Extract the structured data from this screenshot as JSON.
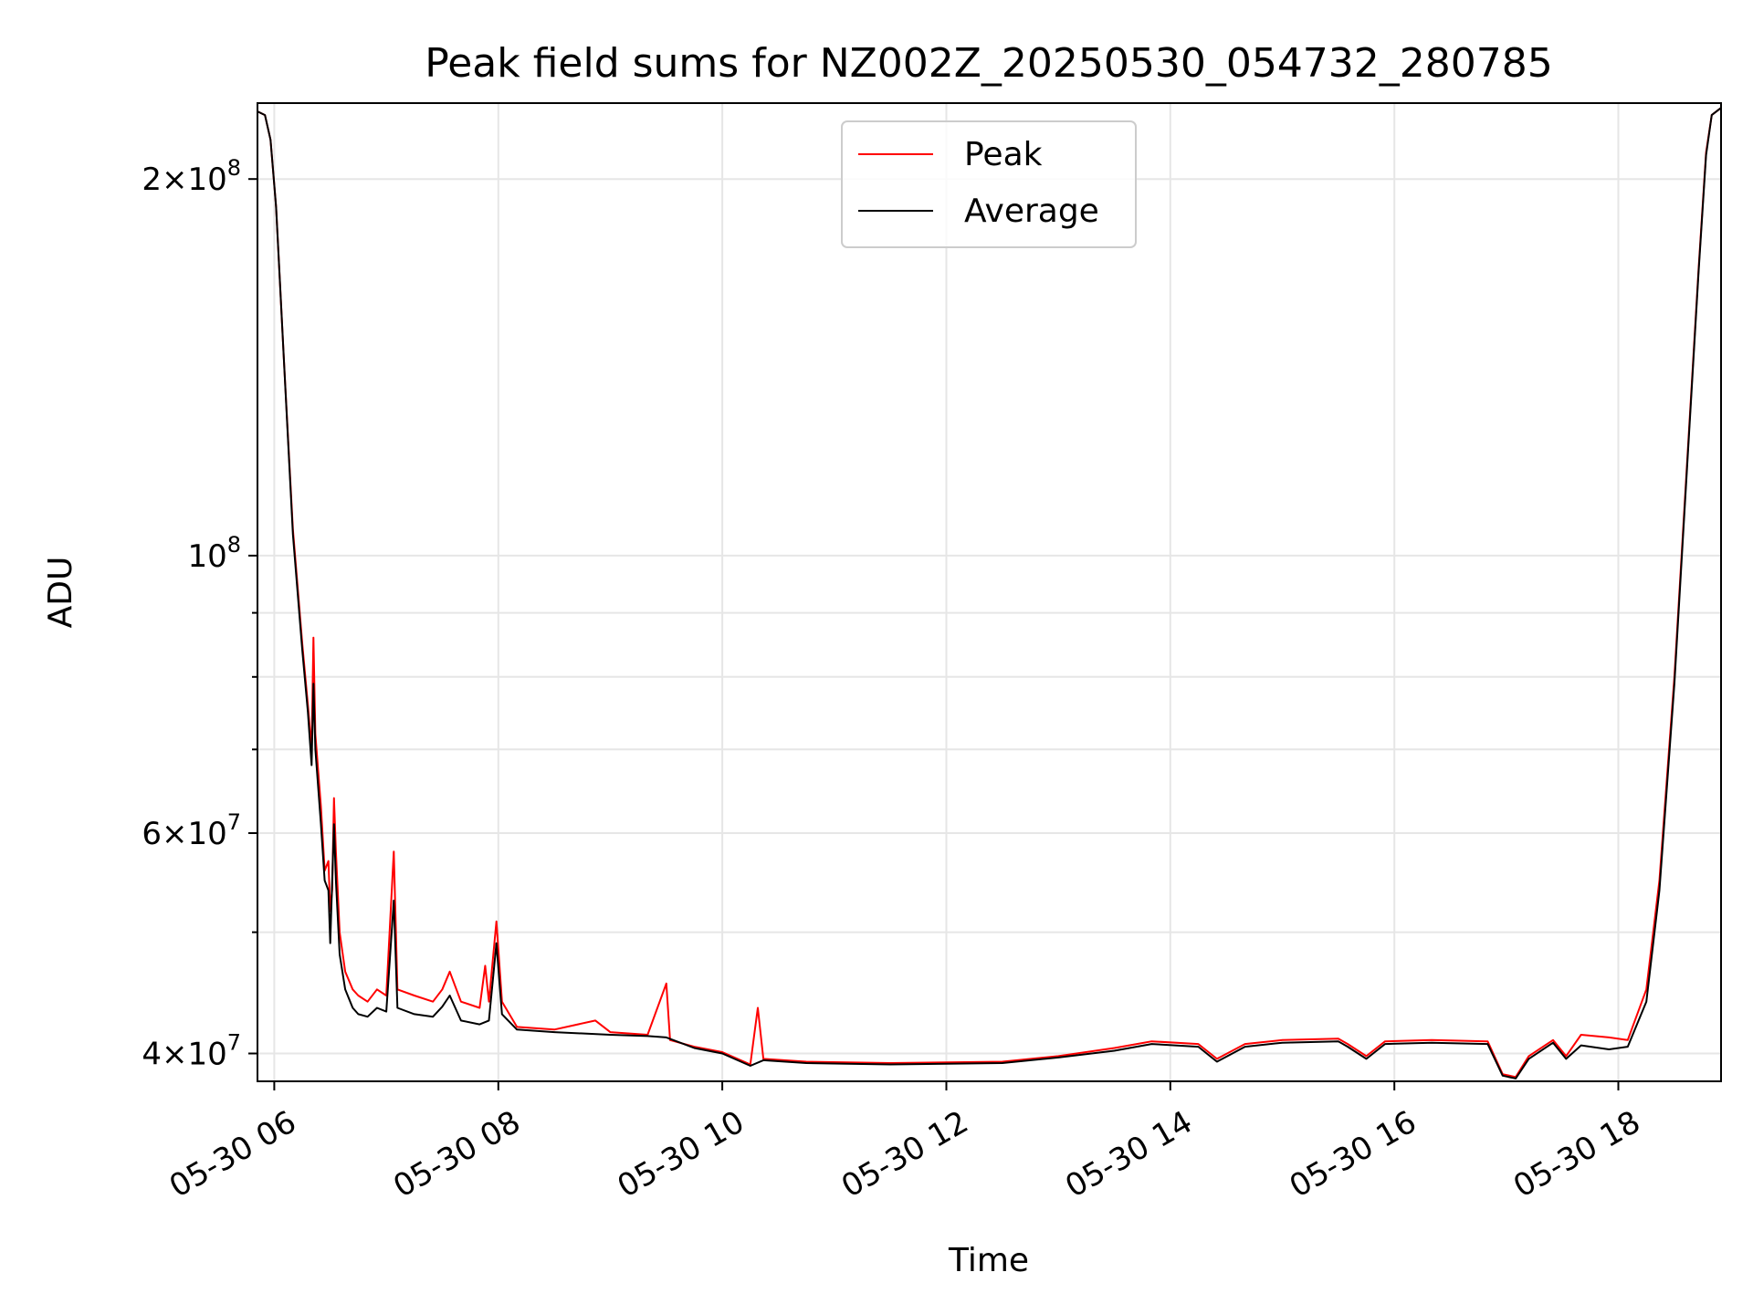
{
  "chart_data": {
    "type": "line",
    "title": "Peak field sums for NZ002Z_20250530_054732_280785",
    "xlabel": "Time",
    "ylabel": "ADU",
    "yscale": "log",
    "ylim": [
      38000000,
      230000000
    ],
    "xlim": [
      "2025-05-30 05:51",
      "2025-05-30 18:55"
    ],
    "x_ticks": [
      {
        "t": "2025-05-30 06:00",
        "label": "05-30 06"
      },
      {
        "t": "2025-05-30 08:00",
        "label": "05-30 08"
      },
      {
        "t": "2025-05-30 10:00",
        "label": "05-30 10"
      },
      {
        "t": "2025-05-30 12:00",
        "label": "05-30 12"
      },
      {
        "t": "2025-05-30 14:00",
        "label": "05-30 14"
      },
      {
        "t": "2025-05-30 16:00",
        "label": "05-30 16"
      },
      {
        "t": "2025-05-30 18:00",
        "label": "05-30 18"
      }
    ],
    "y_major_ticks": [
      {
        "v": 40000000,
        "base": "4",
        "exp": "7"
      },
      {
        "v": 60000000,
        "base": "6",
        "exp": "7"
      },
      {
        "v": 100000000,
        "base": "",
        "exp": "8"
      },
      {
        "v": 200000000,
        "base": "2",
        "exp": "8"
      }
    ],
    "y_minor_ticks": [
      50000000,
      70000000,
      80000000,
      90000000
    ],
    "grid": true,
    "legend": {
      "position": "top-center"
    },
    "series": [
      {
        "name": "Peak",
        "color": "#ff0000",
        "points": [
          [
            "2025-05-30 05:47",
            228000000
          ],
          [
            "2025-05-30 05:55",
            225000000
          ],
          [
            "2025-05-30 05:58",
            215000000
          ],
          [
            "2025-05-30 06:01",
            190000000
          ],
          [
            "2025-05-30 06:05",
            145000000
          ],
          [
            "2025-05-30 06:10",
            105000000
          ],
          [
            "2025-05-30 06:15",
            85000000
          ],
          [
            "2025-05-30 06:18",
            76000000
          ],
          [
            "2025-05-30 06:20",
            70000000
          ],
          [
            "2025-05-30 06:21",
            86000000
          ],
          [
            "2025-05-30 06:22",
            72000000
          ],
          [
            "2025-05-30 06:25",
            63000000
          ],
          [
            "2025-05-30 06:27",
            56000000
          ],
          [
            "2025-05-30 06:29",
            57000000
          ],
          [
            "2025-05-30 06:30",
            52000000
          ],
          [
            "2025-05-30 06:31",
            54000000
          ],
          [
            "2025-05-30 06:32",
            64000000
          ],
          [
            "2025-05-30 06:33",
            58000000
          ],
          [
            "2025-05-30 06:35",
            50000000
          ],
          [
            "2025-05-30 06:38",
            46500000
          ],
          [
            "2025-05-30 06:42",
            45000000
          ],
          [
            "2025-05-30 06:45",
            44500000
          ],
          [
            "2025-05-30 06:50",
            44000000
          ],
          [
            "2025-05-30 06:55",
            45000000
          ],
          [
            "2025-05-30 07:00",
            44500000
          ],
          [
            "2025-05-30 07:04",
            58000000
          ],
          [
            "2025-05-30 07:06",
            45000000
          ],
          [
            "2025-05-30 07:15",
            44500000
          ],
          [
            "2025-05-30 07:25",
            44000000
          ],
          [
            "2025-05-30 07:30",
            45000000
          ],
          [
            "2025-05-30 07:34",
            46500000
          ],
          [
            "2025-05-30 07:40",
            44000000
          ],
          [
            "2025-05-30 07:50",
            43500000
          ],
          [
            "2025-05-30 07:53",
            47000000
          ],
          [
            "2025-05-30 07:55",
            44000000
          ],
          [
            "2025-05-30 07:59",
            51000000
          ],
          [
            "2025-05-30 08:02",
            44000000
          ],
          [
            "2025-05-30 08:10",
            42000000
          ],
          [
            "2025-05-30 08:30",
            41800000
          ],
          [
            "2025-05-30 08:52",
            42500000
          ],
          [
            "2025-05-30 09:00",
            41600000
          ],
          [
            "2025-05-30 09:20",
            41400000
          ],
          [
            "2025-05-30 09:30",
            45500000
          ],
          [
            "2025-05-30 09:32",
            41000000
          ],
          [
            "2025-05-30 09:45",
            40500000
          ],
          [
            "2025-05-30 10:00",
            40100000
          ],
          [
            "2025-05-30 10:15",
            39200000
          ],
          [
            "2025-05-30 10:19",
            43500000
          ],
          [
            "2025-05-30 10:22",
            39600000
          ],
          [
            "2025-05-30 10:45",
            39400000
          ],
          [
            "2025-05-30 11:30",
            39300000
          ],
          [
            "2025-05-30 12:30",
            39400000
          ],
          [
            "2025-05-30 13:00",
            39800000
          ],
          [
            "2025-05-30 13:30",
            40400000
          ],
          [
            "2025-05-30 13:50",
            40900000
          ],
          [
            "2025-05-30 14:15",
            40700000
          ],
          [
            "2025-05-30 14:25",
            39600000
          ],
          [
            "2025-05-30 14:40",
            40700000
          ],
          [
            "2025-05-30 15:00",
            41000000
          ],
          [
            "2025-05-30 15:30",
            41100000
          ],
          [
            "2025-05-30 15:35",
            40700000
          ],
          [
            "2025-05-30 15:45",
            39800000
          ],
          [
            "2025-05-30 15:55",
            40900000
          ],
          [
            "2025-05-30 16:20",
            41000000
          ],
          [
            "2025-05-30 16:50",
            40900000
          ],
          [
            "2025-05-30 16:58",
            38500000
          ],
          [
            "2025-05-30 17:05",
            38300000
          ],
          [
            "2025-05-30 17:12",
            39800000
          ],
          [
            "2025-05-30 17:25",
            41000000
          ],
          [
            "2025-05-30 17:32",
            39800000
          ],
          [
            "2025-05-30 17:40",
            41400000
          ],
          [
            "2025-05-30 17:55",
            41200000
          ],
          [
            "2025-05-30 18:05",
            41000000
          ],
          [
            "2025-05-30 18:15",
            45000000
          ],
          [
            "2025-05-30 18:22",
            55000000
          ],
          [
            "2025-05-30 18:30",
            80000000
          ],
          [
            "2025-05-30 18:37",
            120000000
          ],
          [
            "2025-05-30 18:43",
            170000000
          ],
          [
            "2025-05-30 18:47",
            210000000
          ],
          [
            "2025-05-30 18:50",
            225000000
          ],
          [
            "2025-05-30 18:55",
            228000000
          ]
        ]
      },
      {
        "name": "Average",
        "color": "#000000",
        "points": [
          [
            "2025-05-30 05:47",
            228000000
          ],
          [
            "2025-05-30 05:55",
            225000000
          ],
          [
            "2025-05-30 05:58",
            215000000
          ],
          [
            "2025-05-30 06:01",
            190000000
          ],
          [
            "2025-05-30 06:05",
            145000000
          ],
          [
            "2025-05-30 06:10",
            104000000
          ],
          [
            "2025-05-30 06:15",
            84000000
          ],
          [
            "2025-05-30 06:18",
            75000000
          ],
          [
            "2025-05-30 06:20",
            68000000
          ],
          [
            "2025-05-30 06:21",
            79000000
          ],
          [
            "2025-05-30 06:22",
            70000000
          ],
          [
            "2025-05-30 06:25",
            61000000
          ],
          [
            "2025-05-30 06:27",
            55000000
          ],
          [
            "2025-05-30 06:29",
            54000000
          ],
          [
            "2025-05-30 06:30",
            49000000
          ],
          [
            "2025-05-30 06:32",
            61000000
          ],
          [
            "2025-05-30 06:33",
            55000000
          ],
          [
            "2025-05-30 06:35",
            48000000
          ],
          [
            "2025-05-30 06:38",
            45000000
          ],
          [
            "2025-05-30 06:42",
            43500000
          ],
          [
            "2025-05-30 06:45",
            43000000
          ],
          [
            "2025-05-30 06:50",
            42800000
          ],
          [
            "2025-05-30 06:55",
            43500000
          ],
          [
            "2025-05-30 07:00",
            43200000
          ],
          [
            "2025-05-30 07:04",
            53000000
          ],
          [
            "2025-05-30 07:06",
            43500000
          ],
          [
            "2025-05-30 07:15",
            43000000
          ],
          [
            "2025-05-30 07:25",
            42800000
          ],
          [
            "2025-05-30 07:30",
            43600000
          ],
          [
            "2025-05-30 07:34",
            44500000
          ],
          [
            "2025-05-30 07:40",
            42500000
          ],
          [
            "2025-05-30 07:50",
            42200000
          ],
          [
            "2025-05-30 07:55",
            42500000
          ],
          [
            "2025-05-30 07:59",
            49000000
          ],
          [
            "2025-05-30 08:02",
            43000000
          ],
          [
            "2025-05-30 08:10",
            41800000
          ],
          [
            "2025-05-30 08:30",
            41600000
          ],
          [
            "2025-05-30 09:00",
            41400000
          ],
          [
            "2025-05-30 09:20",
            41300000
          ],
          [
            "2025-05-30 09:30",
            41200000
          ],
          [
            "2025-05-30 09:45",
            40400000
          ],
          [
            "2025-05-30 10:00",
            40000000
          ],
          [
            "2025-05-30 10:15",
            39100000
          ],
          [
            "2025-05-30 10:22",
            39500000
          ],
          [
            "2025-05-30 10:45",
            39300000
          ],
          [
            "2025-05-30 11:30",
            39200000
          ],
          [
            "2025-05-30 12:30",
            39300000
          ],
          [
            "2025-05-30 13:00",
            39700000
          ],
          [
            "2025-05-30 13:30",
            40200000
          ],
          [
            "2025-05-30 13:50",
            40700000
          ],
          [
            "2025-05-30 14:15",
            40500000
          ],
          [
            "2025-05-30 14:25",
            39400000
          ],
          [
            "2025-05-30 14:40",
            40500000
          ],
          [
            "2025-05-30 15:00",
            40800000
          ],
          [
            "2025-05-30 15:30",
            40900000
          ],
          [
            "2025-05-30 15:35",
            40500000
          ],
          [
            "2025-05-30 15:45",
            39600000
          ],
          [
            "2025-05-30 15:55",
            40700000
          ],
          [
            "2025-05-30 16:20",
            40800000
          ],
          [
            "2025-05-30 16:50",
            40700000
          ],
          [
            "2025-05-30 16:58",
            38400000
          ],
          [
            "2025-05-30 17:05",
            38200000
          ],
          [
            "2025-05-30 17:12",
            39600000
          ],
          [
            "2025-05-30 17:25",
            40800000
          ],
          [
            "2025-05-30 17:32",
            39600000
          ],
          [
            "2025-05-30 17:40",
            40600000
          ],
          [
            "2025-05-30 17:55",
            40300000
          ],
          [
            "2025-05-30 18:05",
            40500000
          ],
          [
            "2025-05-30 18:15",
            44000000
          ],
          [
            "2025-05-30 18:22",
            54000000
          ],
          [
            "2025-05-30 18:30",
            79000000
          ],
          [
            "2025-05-30 18:37",
            119000000
          ],
          [
            "2025-05-30 18:43",
            169000000
          ],
          [
            "2025-05-30 18:47",
            209000000
          ],
          [
            "2025-05-30 18:50",
            225000000
          ],
          [
            "2025-05-30 18:55",
            228000000
          ]
        ]
      }
    ]
  }
}
